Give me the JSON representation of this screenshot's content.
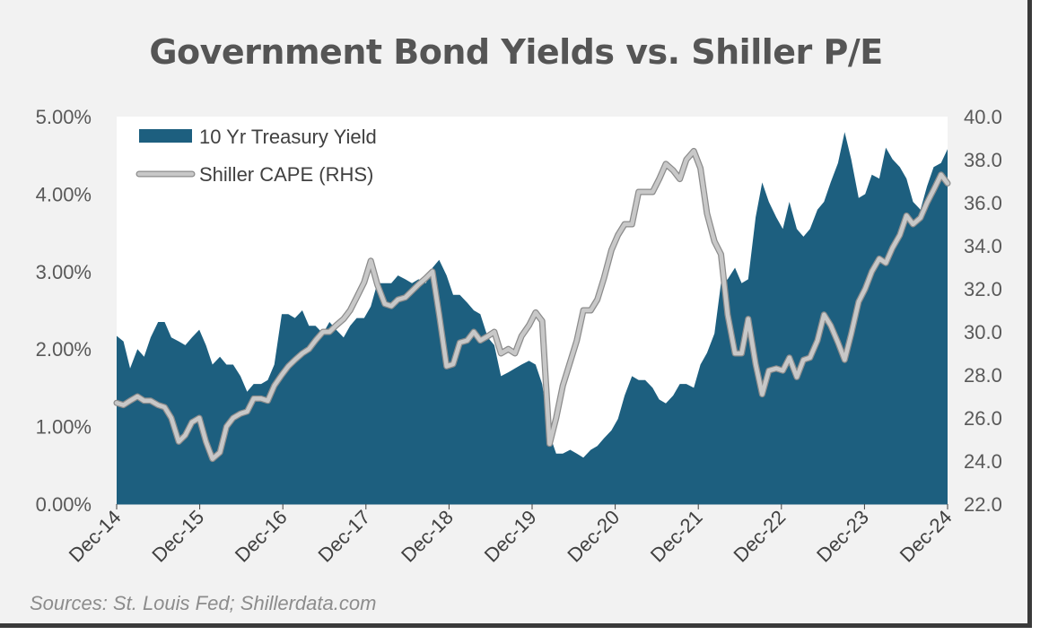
{
  "chart_data": {
    "type": "area+line",
    "title": "Government Bond Yields vs. Shiller P/E",
    "source": "Sources: St. Louis Fed; Shillerdata.com",
    "x_labels": [
      "Dec-14",
      "Dec-15",
      "Dec-16",
      "Dec-17",
      "Dec-18",
      "Dec-19",
      "Dec-20",
      "Dec-21",
      "Dec-22",
      "Dec-23",
      "Dec-24"
    ],
    "x_range": [
      2014.917,
      2024.999
    ],
    "y_left": {
      "label": "",
      "lim": [
        0,
        5
      ],
      "ticks": [
        "0.00%",
        "1.00%",
        "2.00%",
        "3.00%",
        "4.00%",
        "5.00%"
      ]
    },
    "y_right": {
      "label": "",
      "lim": [
        22,
        40
      ],
      "ticks": [
        "22.0",
        "24.0",
        "26.0",
        "28.0",
        "30.0",
        "32.0",
        "34.0",
        "36.0",
        "38.0",
        "40.0"
      ]
    },
    "legend": [
      "10 Yr Treasury Yield",
      "Shiller CAPE (RHS)"
    ],
    "colors": {
      "yield": "#1d5f7f",
      "cape": "#c8c8c8",
      "cape_outline": "#8c8c8c"
    },
    "series": [
      {
        "name": "10 Yr Treasury Yield",
        "axis": "left",
        "points": [
          [
            2014.917,
            2.17
          ],
          [
            2015.0,
            2.1
          ],
          [
            2015.08,
            1.75
          ],
          [
            2015.17,
            2.0
          ],
          [
            2015.25,
            1.9
          ],
          [
            2015.33,
            2.15
          ],
          [
            2015.42,
            2.35
          ],
          [
            2015.5,
            2.35
          ],
          [
            2015.58,
            2.15
          ],
          [
            2015.67,
            2.1
          ],
          [
            2015.75,
            2.05
          ],
          [
            2015.83,
            2.15
          ],
          [
            2015.92,
            2.25
          ],
          [
            2016.0,
            2.05
          ],
          [
            2016.08,
            1.8
          ],
          [
            2016.17,
            1.9
          ],
          [
            2016.25,
            1.8
          ],
          [
            2016.33,
            1.8
          ],
          [
            2016.42,
            1.65
          ],
          [
            2016.5,
            1.45
          ],
          [
            2016.58,
            1.55
          ],
          [
            2016.67,
            1.55
          ],
          [
            2016.75,
            1.6
          ],
          [
            2016.83,
            1.8
          ],
          [
            2016.92,
            2.45
          ],
          [
            2017.0,
            2.45
          ],
          [
            2017.08,
            2.4
          ],
          [
            2017.17,
            2.5
          ],
          [
            2017.25,
            2.3
          ],
          [
            2017.33,
            2.3
          ],
          [
            2017.42,
            2.2
          ],
          [
            2017.5,
            2.35
          ],
          [
            2017.58,
            2.25
          ],
          [
            2017.67,
            2.15
          ],
          [
            2017.75,
            2.3
          ],
          [
            2017.83,
            2.4
          ],
          [
            2017.92,
            2.4
          ],
          [
            2018.0,
            2.55
          ],
          [
            2018.08,
            2.85
          ],
          [
            2018.17,
            2.85
          ],
          [
            2018.25,
            2.85
          ],
          [
            2018.33,
            2.95
          ],
          [
            2018.42,
            2.9
          ],
          [
            2018.5,
            2.85
          ],
          [
            2018.58,
            2.9
          ],
          [
            2018.67,
            2.85
          ],
          [
            2018.75,
            3.05
          ],
          [
            2018.83,
            3.15
          ],
          [
            2018.92,
            2.95
          ],
          [
            2019.0,
            2.7
          ],
          [
            2019.08,
            2.7
          ],
          [
            2019.17,
            2.6
          ],
          [
            2019.25,
            2.5
          ],
          [
            2019.33,
            2.45
          ],
          [
            2019.42,
            2.15
          ],
          [
            2019.5,
            2.05
          ],
          [
            2019.58,
            1.65
          ],
          [
            2019.67,
            1.7
          ],
          [
            2019.75,
            1.75
          ],
          [
            2019.83,
            1.8
          ],
          [
            2019.92,
            1.85
          ],
          [
            2020.0,
            1.8
          ],
          [
            2020.08,
            1.55
          ],
          [
            2020.17,
            0.9
          ],
          [
            2020.25,
            0.65
          ],
          [
            2020.33,
            0.65
          ],
          [
            2020.42,
            0.7
          ],
          [
            2020.5,
            0.65
          ],
          [
            2020.58,
            0.6
          ],
          [
            2020.67,
            0.7
          ],
          [
            2020.75,
            0.75
          ],
          [
            2020.83,
            0.85
          ],
          [
            2020.92,
            0.95
          ],
          [
            2021.0,
            1.1
          ],
          [
            2021.08,
            1.4
          ],
          [
            2021.17,
            1.65
          ],
          [
            2021.25,
            1.6
          ],
          [
            2021.33,
            1.6
          ],
          [
            2021.42,
            1.5
          ],
          [
            2021.5,
            1.35
          ],
          [
            2021.58,
            1.3
          ],
          [
            2021.67,
            1.4
          ],
          [
            2021.75,
            1.55
          ],
          [
            2021.83,
            1.55
          ],
          [
            2021.92,
            1.5
          ],
          [
            2022.0,
            1.8
          ],
          [
            2022.08,
            1.95
          ],
          [
            2022.17,
            2.2
          ],
          [
            2022.25,
            2.85
          ],
          [
            2022.33,
            2.9
          ],
          [
            2022.42,
            3.05
          ],
          [
            2022.5,
            2.85
          ],
          [
            2022.58,
            2.9
          ],
          [
            2022.67,
            3.7
          ],
          [
            2022.75,
            4.15
          ],
          [
            2022.83,
            3.9
          ],
          [
            2022.92,
            3.7
          ],
          [
            2023.0,
            3.55
          ],
          [
            2023.08,
            3.9
          ],
          [
            2023.17,
            3.55
          ],
          [
            2023.25,
            3.45
          ],
          [
            2023.33,
            3.55
          ],
          [
            2023.42,
            3.8
          ],
          [
            2023.5,
            3.9
          ],
          [
            2023.58,
            4.15
          ],
          [
            2023.67,
            4.4
          ],
          [
            2023.75,
            4.8
          ],
          [
            2023.83,
            4.45
          ],
          [
            2023.92,
            3.95
          ],
          [
            2024.0,
            4.0
          ],
          [
            2024.08,
            4.25
          ],
          [
            2024.17,
            4.2
          ],
          [
            2024.25,
            4.6
          ],
          [
            2024.33,
            4.45
          ],
          [
            2024.42,
            4.35
          ],
          [
            2024.5,
            4.2
          ],
          [
            2024.58,
            3.9
          ],
          [
            2024.67,
            3.8
          ],
          [
            2024.75,
            4.1
          ],
          [
            2024.83,
            4.35
          ],
          [
            2024.92,
            4.4
          ],
          [
            2024.999,
            4.58
          ]
        ]
      },
      {
        "name": "Shiller CAPE (RHS)",
        "axis": "right",
        "points": [
          [
            2014.917,
            26.7
          ],
          [
            2015.0,
            26.6
          ],
          [
            2015.08,
            26.8
          ],
          [
            2015.17,
            27.0
          ],
          [
            2015.25,
            26.8
          ],
          [
            2015.33,
            26.8
          ],
          [
            2015.42,
            26.6
          ],
          [
            2015.5,
            26.5
          ],
          [
            2015.58,
            26.0
          ],
          [
            2015.67,
            24.9
          ],
          [
            2015.75,
            25.2
          ],
          [
            2015.83,
            25.8
          ],
          [
            2015.92,
            26.0
          ],
          [
            2016.0,
            24.9
          ],
          [
            2016.08,
            24.1
          ],
          [
            2016.17,
            24.4
          ],
          [
            2016.25,
            25.6
          ],
          [
            2016.33,
            26.0
          ],
          [
            2016.42,
            26.2
          ],
          [
            2016.5,
            26.3
          ],
          [
            2016.58,
            26.9
          ],
          [
            2016.67,
            26.9
          ],
          [
            2016.75,
            26.8
          ],
          [
            2016.83,
            27.5
          ],
          [
            2016.92,
            28.0
          ],
          [
            2017.0,
            28.4
          ],
          [
            2017.08,
            28.7
          ],
          [
            2017.17,
            29.0
          ],
          [
            2017.25,
            29.2
          ],
          [
            2017.33,
            29.6
          ],
          [
            2017.42,
            30.0
          ],
          [
            2017.5,
            30.0
          ],
          [
            2017.58,
            30.3
          ],
          [
            2017.67,
            30.6
          ],
          [
            2017.75,
            31.0
          ],
          [
            2017.83,
            31.6
          ],
          [
            2017.92,
            32.3
          ],
          [
            2018.0,
            33.3
          ],
          [
            2018.08,
            32.2
          ],
          [
            2018.17,
            31.3
          ],
          [
            2018.25,
            31.2
          ],
          [
            2018.33,
            31.5
          ],
          [
            2018.42,
            31.6
          ],
          [
            2018.5,
            31.9
          ],
          [
            2018.58,
            32.2
          ],
          [
            2018.67,
            32.5
          ],
          [
            2018.75,
            32.8
          ],
          [
            2018.83,
            30.8
          ],
          [
            2018.92,
            28.4
          ],
          [
            2019.0,
            28.5
          ],
          [
            2019.08,
            29.5
          ],
          [
            2019.17,
            29.6
          ],
          [
            2019.25,
            30.0
          ],
          [
            2019.33,
            29.6
          ],
          [
            2019.42,
            29.8
          ],
          [
            2019.5,
            30.0
          ],
          [
            2019.58,
            29.0
          ],
          [
            2019.67,
            29.2
          ],
          [
            2019.75,
            29.0
          ],
          [
            2019.83,
            29.8
          ],
          [
            2019.92,
            30.3
          ],
          [
            2020.0,
            30.9
          ],
          [
            2020.08,
            30.5
          ],
          [
            2020.17,
            24.8
          ],
          [
            2020.25,
            26.0
          ],
          [
            2020.33,
            27.5
          ],
          [
            2020.42,
            28.6
          ],
          [
            2020.5,
            29.6
          ],
          [
            2020.58,
            31.0
          ],
          [
            2020.67,
            31.0
          ],
          [
            2020.75,
            31.5
          ],
          [
            2020.83,
            32.5
          ],
          [
            2020.92,
            33.8
          ],
          [
            2021.0,
            34.5
          ],
          [
            2021.08,
            35.0
          ],
          [
            2021.17,
            35.0
          ],
          [
            2021.25,
            36.5
          ],
          [
            2021.33,
            36.5
          ],
          [
            2021.42,
            36.5
          ],
          [
            2021.5,
            37.1
          ],
          [
            2021.58,
            37.8
          ],
          [
            2021.67,
            37.5
          ],
          [
            2021.75,
            37.1
          ],
          [
            2021.83,
            38.0
          ],
          [
            2021.92,
            38.4
          ],
          [
            2022.0,
            37.6
          ],
          [
            2022.08,
            35.5
          ],
          [
            2022.17,
            34.2
          ],
          [
            2022.25,
            33.6
          ],
          [
            2022.33,
            30.8
          ],
          [
            2022.42,
            29.0
          ],
          [
            2022.5,
            29.0
          ],
          [
            2022.58,
            30.6
          ],
          [
            2022.67,
            28.5
          ],
          [
            2022.75,
            27.1
          ],
          [
            2022.83,
            28.2
          ],
          [
            2022.92,
            28.3
          ],
          [
            2023.0,
            28.2
          ],
          [
            2023.08,
            28.8
          ],
          [
            2023.17,
            27.9
          ],
          [
            2023.25,
            28.7
          ],
          [
            2023.33,
            28.8
          ],
          [
            2023.42,
            29.6
          ],
          [
            2023.5,
            30.8
          ],
          [
            2023.58,
            30.3
          ],
          [
            2023.67,
            29.5
          ],
          [
            2023.75,
            28.7
          ],
          [
            2023.83,
            29.9
          ],
          [
            2023.92,
            31.4
          ],
          [
            2024.0,
            32.0
          ],
          [
            2024.08,
            32.8
          ],
          [
            2024.17,
            33.4
          ],
          [
            2024.25,
            33.2
          ],
          [
            2024.33,
            33.9
          ],
          [
            2024.42,
            34.5
          ],
          [
            2024.5,
            35.4
          ],
          [
            2024.58,
            35.0
          ],
          [
            2024.67,
            35.3
          ],
          [
            2024.75,
            36.0
          ],
          [
            2024.83,
            36.6
          ],
          [
            2024.92,
            37.3
          ],
          [
            2024.999,
            36.9
          ]
        ]
      }
    ]
  }
}
